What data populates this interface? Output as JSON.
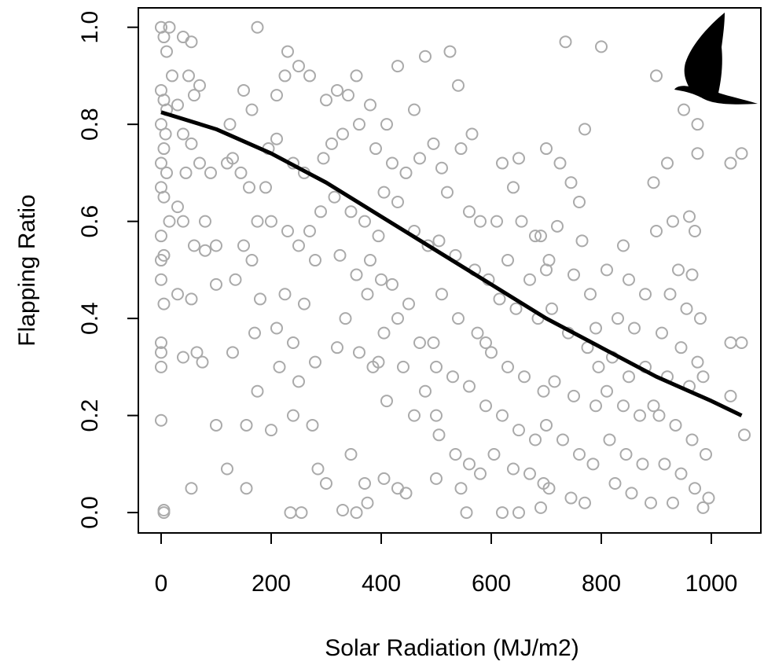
{
  "chart_data": {
    "type": "scatter",
    "xlabel": "Solar Radiation (MJ/m2)",
    "ylabel": "Flapping Ratio",
    "xlim": [
      -41.4,
      1090
    ],
    "ylim": [
      -0.042,
      1.04
    ],
    "xticks": [
      0,
      200,
      400,
      600,
      800,
      1000
    ],
    "yticks": [
      {
        "value": 0,
        "label": "0.0"
      },
      0.2,
      0.4,
      0.6,
      0.8,
      {
        "value": 1,
        "label": "1.0"
      }
    ],
    "point_color": "#aaaaaa",
    "fit_color": "#000000",
    "x": [
      0,
      5,
      10,
      15,
      20,
      0,
      5,
      10,
      0,
      8,
      5,
      0,
      10,
      0,
      5,
      15,
      0,
      5,
      0,
      0,
      5,
      0,
      0,
      0,
      0,
      5,
      5,
      40,
      55,
      50,
      60,
      30,
      70,
      40,
      55,
      70,
      45,
      90,
      30,
      40,
      80,
      60,
      80,
      30,
      55,
      65,
      40,
      75,
      55,
      100,
      100,
      100,
      125,
      150,
      165,
      175,
      130,
      145,
      160,
      120,
      175,
      150,
      165,
      135,
      180,
      170,
      130,
      175,
      155,
      120,
      155,
      195,
      190,
      210,
      230,
      225,
      250,
      270,
      210,
      240,
      260,
      200,
      230,
      250,
      280,
      225,
      260,
      210,
      240,
      280,
      215,
      250,
      200,
      240,
      275,
      285,
      300,
      235,
      255,
      270,
      290,
      295,
      300,
      320,
      340,
      355,
      380,
      310,
      330,
      360,
      390,
      315,
      345,
      370,
      395,
      325,
      355,
      375,
      335,
      320,
      360,
      385,
      345,
      370,
      375,
      330,
      355,
      395,
      380,
      410,
      430,
      460,
      480,
      420,
      445,
      470,
      495,
      405,
      430,
      460,
      485,
      400,
      420,
      450,
      405,
      430,
      470,
      495,
      410,
      440,
      460,
      480,
      405,
      430,
      445,
      500,
      525,
      540,
      565,
      510,
      545,
      520,
      560,
      580,
      505,
      535,
      570,
      595,
      510,
      540,
      575,
      500,
      530,
      560,
      590,
      505,
      535,
      560,
      580,
      500,
      545,
      555,
      590,
      620,
      650,
      640,
      680,
      610,
      655,
      690,
      630,
      670,
      700,
      615,
      645,
      685,
      600,
      630,
      660,
      695,
      620,
      650,
      680,
      605,
      640,
      670,
      695,
      620,
      650,
      690,
      735,
      700,
      725,
      770,
      745,
      760,
      720,
      765,
      705,
      750,
      780,
      710,
      740,
      775,
      795,
      715,
      750,
      790,
      700,
      730,
      760,
      785,
      705,
      745,
      770,
      800,
      790,
      840,
      850,
      810,
      880,
      830,
      860,
      820,
      850,
      880,
      810,
      840,
      870,
      895,
      815,
      845,
      875,
      825,
      855,
      890,
      900,
      895,
      900,
      920,
      950,
      975,
      975,
      930,
      960,
      970,
      940,
      965,
      925,
      955,
      980,
      910,
      945,
      975,
      920,
      960,
      985,
      905,
      935,
      965,
      990,
      915,
      945,
      970,
      995,
      930,
      985,
      1035,
      1055,
      1035,
      1055,
      1035,
      1060
    ],
    "y": [
      1.0,
      0.98,
      0.95,
      1.0,
      0.9,
      0.87,
      0.85,
      0.83,
      0.8,
      0.78,
      0.75,
      0.72,
      0.7,
      0.67,
      0.65,
      0.6,
      0.57,
      0.53,
      0.52,
      0.48,
      0.43,
      0.35,
      0.33,
      0.3,
      0.19,
      0.005,
      0.0,
      0.98,
      0.97,
      0.9,
      0.86,
      0.84,
      0.88,
      0.78,
      0.76,
      0.72,
      0.7,
      0.7,
      0.63,
      0.6,
      0.6,
      0.55,
      0.54,
      0.45,
      0.44,
      0.33,
      0.32,
      0.31,
      0.05,
      0.18,
      0.47,
      0.55,
      0.8,
      0.87,
      0.83,
      1.0,
      0.73,
      0.7,
      0.67,
      0.72,
      0.6,
      0.55,
      0.52,
      0.48,
      0.44,
      0.37,
      0.33,
      0.25,
      0.18,
      0.09,
      0.05,
      0.75,
      0.67,
      0.86,
      0.95,
      0.9,
      0.92,
      0.9,
      0.77,
      0.72,
      0.7,
      0.6,
      0.58,
      0.55,
      0.52,
      0.45,
      0.43,
      0.38,
      0.35,
      0.31,
      0.3,
      0.27,
      0.17,
      0.2,
      0.18,
      0.09,
      0.06,
      0.0,
      0.0,
      0.58,
      0.62,
      0.73,
      0.85,
      0.87,
      0.86,
      0.9,
      0.84,
      0.76,
      0.78,
      0.8,
      0.75,
      0.65,
      0.62,
      0.6,
      0.57,
      0.53,
      0.49,
      0.45,
      0.4,
      0.34,
      0.33,
      0.3,
      0.12,
      0.06,
      0.02,
      0.005,
      0.0,
      0.31,
      0.52,
      0.8,
      0.92,
      0.83,
      0.94,
      0.72,
      0.7,
      0.73,
      0.76,
      0.66,
      0.64,
      0.58,
      0.55,
      0.48,
      0.47,
      0.43,
      0.37,
      0.4,
      0.35,
      0.35,
      0.23,
      0.3,
      0.2,
      0.25,
      0.07,
      0.05,
      0.04,
      0.2,
      0.95,
      0.88,
      0.78,
      0.71,
      0.75,
      0.66,
      0.62,
      0.6,
      0.56,
      0.53,
      0.5,
      0.48,
      0.45,
      0.4,
      0.37,
      0.3,
      0.28,
      0.26,
      0.22,
      0.16,
      0.12,
      0.1,
      0.08,
      0.07,
      0.05,
      0.0,
      0.35,
      0.72,
      0.73,
      0.67,
      0.57,
      0.6,
      0.6,
      0.57,
      0.52,
      0.48,
      0.5,
      0.44,
      0.42,
      0.4,
      0.33,
      0.3,
      0.28,
      0.25,
      0.2,
      0.17,
      0.15,
      0.12,
      0.09,
      0.08,
      0.06,
      0.0,
      0.0,
      0.01,
      0.97,
      0.75,
      0.72,
      0.79,
      0.68,
      0.64,
      0.59,
      0.56,
      0.52,
      0.49,
      0.45,
      0.42,
      0.37,
      0.34,
      0.3,
      0.27,
      0.24,
      0.22,
      0.18,
      0.15,
      0.12,
      0.1,
      0.05,
      0.03,
      0.02,
      0.96,
      0.38,
      0.55,
      0.48,
      0.5,
      0.45,
      0.4,
      0.38,
      0.32,
      0.28,
      0.3,
      0.25,
      0.22,
      0.2,
      0.22,
      0.15,
      0.12,
      0.1,
      0.06,
      0.04,
      0.02,
      0.9,
      0.68,
      0.58,
      0.72,
      0.83,
      0.8,
      0.74,
      0.6,
      0.61,
      0.58,
      0.5,
      0.49,
      0.45,
      0.42,
      0.4,
      0.37,
      0.34,
      0.31,
      0.28,
      0.26,
      0.28,
      0.2,
      0.18,
      0.15,
      0.12,
      0.1,
      0.08,
      0.05,
      0.03,
      0.02,
      0.01,
      0.72,
      0.74,
      0.35,
      0.35,
      0.24,
      0.16
    ],
    "fit": {
      "x": [
        0,
        100,
        200,
        300,
        400,
        500,
        600,
        700,
        800,
        900,
        1000,
        1055
      ],
      "y": [
        0.825,
        0.79,
        0.74,
        0.68,
        0.61,
        0.54,
        0.47,
        0.4,
        0.34,
        0.28,
        0.23,
        0.2
      ]
    }
  }
}
